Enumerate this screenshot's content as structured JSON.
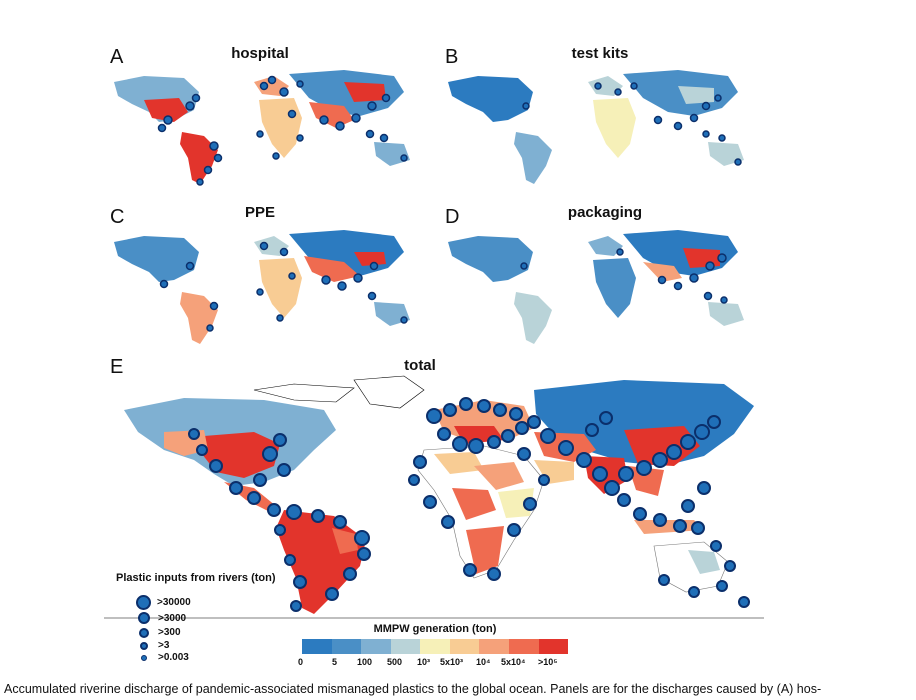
{
  "panels": {
    "a": {
      "letter": "A",
      "title": "hospital"
    },
    "b": {
      "letter": "B",
      "title": "test kits"
    },
    "c": {
      "letter": "C",
      "title": "PPE"
    },
    "d": {
      "letter": "D",
      "title": "packaging"
    },
    "e": {
      "letter": "E",
      "title": "total"
    }
  },
  "bubble_legend": {
    "title": "Plastic inputs from rivers (ton)",
    "items": [
      ">30000",
      ">3000",
      ">300",
      ">3",
      ">0.003"
    ]
  },
  "color_legend": {
    "title": "MMPW generation (ton)",
    "ticks": [
      "0",
      "5",
      "100",
      "500",
      "10³",
      "5x10³",
      "10⁴",
      "5x10⁴",
      ">10⁵"
    ],
    "colors": [
      "#2c7bc0",
      "#4a8fc6",
      "#7fb0d2",
      "#b9d3d8",
      "#f6f0b8",
      "#f8cc94",
      "#f5a17a",
      "#ef6b50",
      "#e2342c"
    ]
  },
  "caption": "Accumulated riverine discharge of pandemic-associated mismanaged plastics to the global ocean. Panels are for the discharges caused by (A) hos-"
}
